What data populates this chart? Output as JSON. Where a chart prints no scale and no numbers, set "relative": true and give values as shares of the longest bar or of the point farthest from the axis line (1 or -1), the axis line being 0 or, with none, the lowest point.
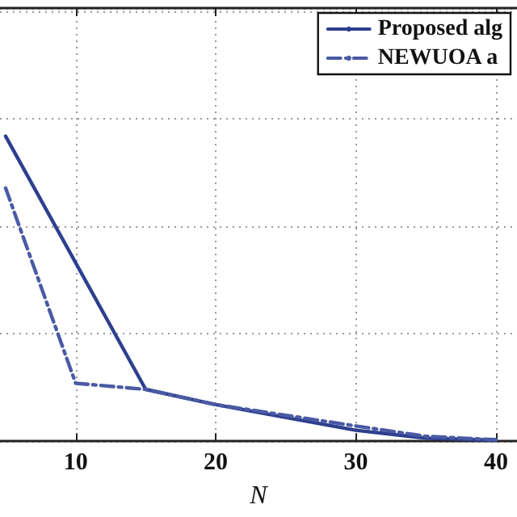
{
  "chart_data": {
    "type": "line",
    "xlabel": "N",
    "relative": true,
    "xlim": [
      4.6,
      41.5
    ],
    "xticks": [
      10,
      20,
      30,
      40
    ],
    "grid": true,
    "legend": "top right",
    "marker": "none",
    "series": [
      {
        "name": "Proposed alg",
        "color": "#2e3f8f",
        "line_style": "solid",
        "x": [
          5,
          15,
          20,
          30,
          35,
          40
        ],
        "values": [
          1,
          0.17,
          0.12,
          0.036,
          0.01,
          0.003
        ]
      },
      {
        "name": "NEWUOA a",
        "color": "#4a5aa3",
        "line_style": "dashed",
        "x": [
          5,
          10,
          15,
          20,
          30,
          35,
          40
        ],
        "values": [
          0.83,
          0.19,
          0.17,
          0.12,
          0.05,
          0.016,
          0.005
        ]
      }
    ]
  }
}
